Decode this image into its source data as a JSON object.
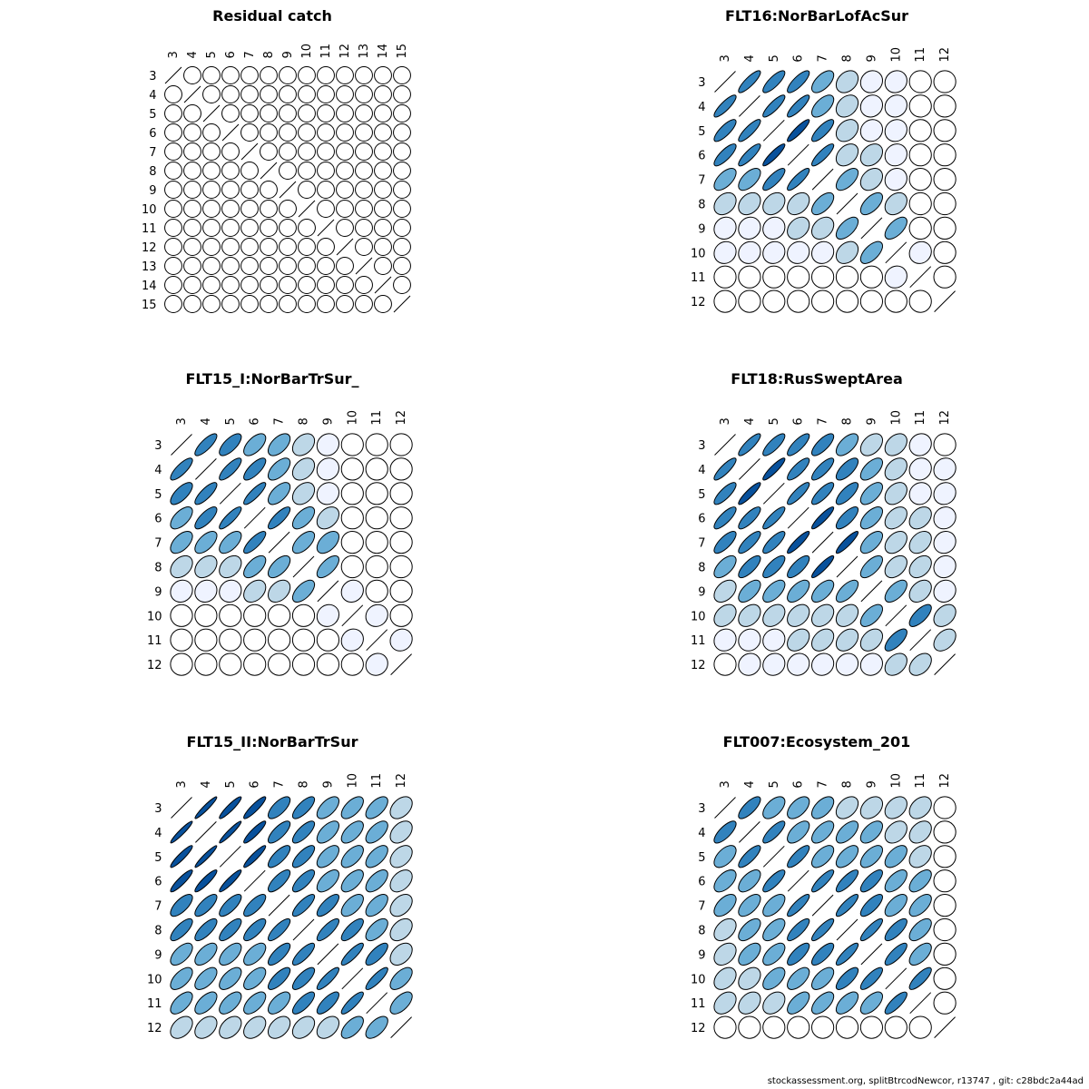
{
  "footer": "stockassessment.org, splitBtrcodNewcor, r13747 , git: c28bdc2a44ad",
  "colors": {
    "scale": [
      "#ffffff",
      "#eff3ff",
      "#bdd7e7",
      "#6baed6",
      "#3182bd",
      "#08519c"
    ],
    "stroke": "#000000"
  },
  "chart_data": [
    {
      "type": "heatmap",
      "subtype": "correlation-ellipse-matrix",
      "title": "Residual catch",
      "ages": [
        "3",
        "4",
        "5",
        "6",
        "7",
        "8",
        "9",
        "10",
        "11",
        "12",
        "13",
        "14",
        "15"
      ],
      "correlations": [
        [
          1,
          0,
          0,
          0,
          0,
          0,
          0,
          0,
          0,
          0,
          0,
          0,
          0
        ],
        [
          0,
          1,
          0,
          0,
          0,
          0,
          0,
          0,
          0,
          0,
          0,
          0,
          0
        ],
        [
          0,
          0,
          1,
          0,
          0,
          0,
          0,
          0,
          0,
          0,
          0,
          0,
          0
        ],
        [
          0,
          0,
          0,
          1,
          0,
          0,
          0,
          0,
          0,
          0,
          0,
          0,
          0
        ],
        [
          0,
          0,
          0,
          0,
          1,
          0,
          0,
          0,
          0,
          0,
          0,
          0,
          0
        ],
        [
          0,
          0,
          0,
          0,
          0,
          1,
          0,
          0,
          0,
          0,
          0,
          0,
          0
        ],
        [
          0,
          0,
          0,
          0,
          0,
          0,
          1,
          0,
          0,
          0,
          0,
          0,
          0
        ],
        [
          0,
          0,
          0,
          0,
          0,
          0,
          0,
          1,
          0,
          0,
          0,
          0,
          0
        ],
        [
          0,
          0,
          0,
          0,
          0,
          0,
          0,
          0,
          1,
          0,
          0,
          0,
          0
        ],
        [
          0,
          0,
          0,
          0,
          0,
          0,
          0,
          0,
          0,
          1,
          0,
          0,
          0
        ],
        [
          0,
          0,
          0,
          0,
          0,
          0,
          0,
          0,
          0,
          0,
          1,
          0,
          0
        ],
        [
          0,
          0,
          0,
          0,
          0,
          0,
          0,
          0,
          0,
          0,
          0,
          1,
          0
        ],
        [
          0,
          0,
          0,
          0,
          0,
          0,
          0,
          0,
          0,
          0,
          0,
          0,
          1
        ]
      ]
    },
    {
      "type": "heatmap",
      "subtype": "correlation-ellipse-matrix",
      "title": "FLT16:NorBarLofAcSur",
      "ages": [
        "3",
        "4",
        "5",
        "6",
        "7",
        "8",
        "9",
        "10",
        "11",
        "12"
      ],
      "correlations": [
        [
          1,
          0.85,
          0.8,
          0.8,
          0.6,
          0.3,
          0.1,
          0.1,
          0,
          0
        ],
        [
          0.85,
          1,
          0.85,
          0.85,
          0.6,
          0.3,
          0.1,
          0.1,
          0,
          0
        ],
        [
          0.8,
          0.85,
          1,
          0.9,
          0.8,
          0.3,
          0.1,
          0.1,
          0,
          0
        ],
        [
          0.8,
          0.85,
          0.9,
          1,
          0.85,
          0.35,
          0.3,
          0.1,
          0,
          0
        ],
        [
          0.6,
          0.6,
          0.8,
          0.85,
          1,
          0.6,
          0.3,
          0.1,
          0,
          0
        ],
        [
          0.3,
          0.3,
          0.3,
          0.35,
          0.6,
          1,
          0.6,
          0.3,
          0,
          0
        ],
        [
          0.1,
          0.1,
          0.1,
          0.3,
          0.3,
          0.6,
          1,
          0.6,
          0,
          0
        ],
        [
          0.1,
          0.1,
          0.1,
          0.1,
          0.1,
          0.3,
          0.6,
          1,
          0.1,
          0
        ],
        [
          0,
          0,
          0,
          0,
          0,
          0,
          0,
          0.1,
          1,
          0
        ],
        [
          0,
          0,
          0,
          0,
          0,
          0,
          0,
          0,
          0,
          1
        ]
      ]
    },
    {
      "type": "heatmap",
      "subtype": "correlation-ellipse-matrix",
      "title": "FLT15_I:NorBarTrSur_",
      "ages": [
        "3",
        "4",
        "5",
        "6",
        "7",
        "8",
        "9",
        "10",
        "11",
        "12"
      ],
      "correlations": [
        [
          1,
          0.8,
          0.7,
          0.6,
          0.55,
          0.35,
          0.1,
          0,
          0,
          0
        ],
        [
          0.8,
          1,
          0.8,
          0.75,
          0.6,
          0.35,
          0.1,
          0,
          0,
          0
        ],
        [
          0.7,
          0.8,
          1,
          0.85,
          0.6,
          0.35,
          0.1,
          0,
          0,
          0
        ],
        [
          0.6,
          0.75,
          0.85,
          1,
          0.8,
          0.6,
          0.35,
          0,
          0,
          0
        ],
        [
          0.55,
          0.6,
          0.6,
          0.8,
          1,
          0.6,
          0.5,
          0,
          0,
          0
        ],
        [
          0.35,
          0.35,
          0.35,
          0.6,
          0.6,
          1,
          0.65,
          0,
          0,
          0
        ],
        [
          0.1,
          0.1,
          0.1,
          0.35,
          0.35,
          0.6,
          1,
          0.1,
          0,
          0
        ],
        [
          0,
          0,
          0,
          0,
          0,
          0,
          0.1,
          1,
          0.1,
          0
        ],
        [
          0,
          0,
          0,
          0,
          0,
          0,
          0,
          0.1,
          1,
          0.1
        ],
        [
          0,
          0,
          0,
          0,
          0,
          0,
          0,
          0,
          0.1,
          1
        ]
      ]
    },
    {
      "type": "heatmap",
      "subtype": "correlation-ellipse-matrix",
      "title": "FLT18:RusSweptArea",
      "ages": [
        "3",
        "4",
        "5",
        "6",
        "7",
        "8",
        "9",
        "10",
        "11",
        "12"
      ],
      "correlations": [
        [
          1,
          0.85,
          0.8,
          0.8,
          0.75,
          0.6,
          0.4,
          0.35,
          0.1,
          0
        ],
        [
          0.85,
          1,
          0.9,
          0.8,
          0.8,
          0.7,
          0.6,
          0.35,
          0.1,
          0.1
        ],
        [
          0.8,
          0.9,
          1,
          0.85,
          0.8,
          0.75,
          0.6,
          0.35,
          0.1,
          0.1
        ],
        [
          0.8,
          0.8,
          0.85,
          1,
          0.9,
          0.75,
          0.6,
          0.4,
          0.35,
          0.1
        ],
        [
          0.75,
          0.8,
          0.8,
          0.9,
          1,
          0.9,
          0.6,
          0.4,
          0.35,
          0.1
        ],
        [
          0.6,
          0.75,
          0.75,
          0.75,
          0.9,
          1,
          0.65,
          0.4,
          0.35,
          0.1
        ],
        [
          0.4,
          0.6,
          0.6,
          0.6,
          0.6,
          0.65,
          1,
          0.6,
          0.35,
          0.1
        ],
        [
          0.35,
          0.35,
          0.35,
          0.35,
          0.35,
          0.35,
          0.6,
          1,
          0.7,
          0.35
        ],
        [
          0.1,
          0.1,
          0.1,
          0.35,
          0.35,
          0.35,
          0.35,
          0.7,
          1,
          0.4
        ],
        [
          0,
          0.1,
          0.1,
          0.1,
          0.1,
          0.1,
          0.1,
          0.35,
          0.4,
          1
        ]
      ]
    },
    {
      "type": "heatmap",
      "subtype": "correlation-ellipse-matrix",
      "title": "FLT15_II:NorBarTrSur",
      "ages": [
        "3",
        "4",
        "5",
        "6",
        "7",
        "8",
        "9",
        "10",
        "11",
        "12"
      ],
      "correlations": [
        [
          1,
          0.95,
          0.92,
          0.9,
          0.7,
          0.75,
          0.6,
          0.6,
          0.6,
          0.4
        ],
        [
          0.95,
          1,
          0.95,
          0.9,
          0.75,
          0.75,
          0.6,
          0.6,
          0.6,
          0.4
        ],
        [
          0.92,
          0.95,
          1,
          0.92,
          0.75,
          0.75,
          0.6,
          0.6,
          0.6,
          0.4
        ],
        [
          0.9,
          0.9,
          0.92,
          1,
          0.75,
          0.75,
          0.6,
          0.6,
          0.6,
          0.4
        ],
        [
          0.7,
          0.75,
          0.75,
          0.75,
          1,
          0.8,
          0.75,
          0.6,
          0.6,
          0.4
        ],
        [
          0.75,
          0.75,
          0.75,
          0.75,
          0.8,
          1,
          0.8,
          0.75,
          0.6,
          0.4
        ],
        [
          0.6,
          0.6,
          0.6,
          0.6,
          0.75,
          0.8,
          1,
          0.85,
          0.75,
          0.4
        ],
        [
          0.6,
          0.6,
          0.6,
          0.6,
          0.75,
          0.75,
          0.85,
          1,
          0.85,
          0.6
        ],
        [
          0.6,
          0.6,
          0.6,
          0.6,
          0.6,
          0.75,
          0.75,
          0.85,
          1,
          0.6
        ],
        [
          0.4,
          0.4,
          0.4,
          0.4,
          0.4,
          0.4,
          0.4,
          0.6,
          0.6,
          1
        ]
      ]
    },
    {
      "type": "heatmap",
      "subtype": "correlation-ellipse-matrix",
      "title": "FLT007:Ecosystem_201",
      "ages": [
        "3",
        "4",
        "5",
        "6",
        "7",
        "8",
        "9",
        "10",
        "11",
        "12"
      ],
      "correlations": [
        [
          1,
          0.75,
          0.55,
          0.55,
          0.55,
          0.4,
          0.35,
          0.35,
          0.35,
          0
        ],
        [
          0.75,
          1,
          0.8,
          0.6,
          0.6,
          0.6,
          0.55,
          0.35,
          0.35,
          0
        ],
        [
          0.55,
          0.8,
          1,
          0.8,
          0.6,
          0.6,
          0.6,
          0.55,
          0.35,
          0
        ],
        [
          0.55,
          0.6,
          0.8,
          1,
          0.85,
          0.8,
          0.75,
          0.6,
          0.6,
          0
        ],
        [
          0.55,
          0.6,
          0.6,
          0.85,
          1,
          0.85,
          0.75,
          0.6,
          0.6,
          0
        ],
        [
          0.4,
          0.6,
          0.6,
          0.8,
          0.85,
          1,
          0.85,
          0.75,
          0.6,
          0
        ],
        [
          0.35,
          0.55,
          0.6,
          0.75,
          0.75,
          0.85,
          1,
          0.8,
          0.6,
          0
        ],
        [
          0.35,
          0.35,
          0.55,
          0.6,
          0.6,
          0.75,
          0.8,
          1,
          0.8,
          0
        ],
        [
          0.35,
          0.35,
          0.35,
          0.6,
          0.6,
          0.6,
          0.6,
          0.8,
          1,
          0
        ],
        [
          0,
          0,
          0,
          0,
          0,
          0,
          0,
          0,
          0,
          1
        ]
      ]
    }
  ]
}
